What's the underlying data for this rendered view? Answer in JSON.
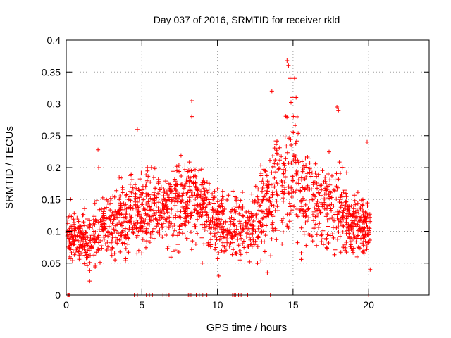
{
  "chart_data": {
    "type": "scatter",
    "title": "Day 037 of 2016, SRMTID for receiver rkld",
    "xlabel": "GPS time / hours",
    "ylabel": "SRMTID / TECUs",
    "xlim": [
      0,
      24
    ],
    "ylim": [
      0,
      0.4
    ],
    "xticks": [
      0,
      5,
      10,
      15,
      20
    ],
    "xtick_labels": [
      "0",
      "5",
      "10",
      "15",
      "20"
    ],
    "yticks": [
      0,
      0.05,
      0.1,
      0.15,
      0.2,
      0.25,
      0.3,
      0.35,
      0.4
    ],
    "ytick_labels": [
      "0",
      "0.05",
      "0.1",
      "0.15",
      "0.2",
      "0.25",
      "0.3",
      "0.35",
      "0.4"
    ],
    "grid": true,
    "marker": "+",
    "color": "#ff0000",
    "series": [
      {
        "name": "SRMTID",
        "x_range": [
          0.05,
          20.1
        ],
        "envelope": [
          {
            "x": 0.0,
            "lo": 0.055,
            "hi": 0.14
          },
          {
            "x": 1.0,
            "lo": 0.05,
            "hi": 0.13
          },
          {
            "x": 1.5,
            "lo": 0.025,
            "hi": 0.13
          },
          {
            "x": 2.0,
            "lo": 0.045,
            "hi": 0.16
          },
          {
            "x": 3.0,
            "lo": 0.05,
            "hi": 0.17
          },
          {
            "x": 4.0,
            "lo": 0.055,
            "hi": 0.19
          },
          {
            "x": 5.0,
            "lo": 0.06,
            "hi": 0.2
          },
          {
            "x": 6.0,
            "lo": 0.08,
            "hi": 0.2
          },
          {
            "x": 7.0,
            "lo": 0.07,
            "hi": 0.21
          },
          {
            "x": 8.0,
            "lo": 0.08,
            "hi": 0.23
          },
          {
            "x": 9.0,
            "lo": 0.08,
            "hi": 0.2
          },
          {
            "x": 10.0,
            "lo": 0.05,
            "hi": 0.17
          },
          {
            "x": 11.0,
            "lo": 0.05,
            "hi": 0.16
          },
          {
            "x": 12.0,
            "lo": 0.05,
            "hi": 0.16
          },
          {
            "x": 13.0,
            "lo": 0.05,
            "hi": 0.22
          },
          {
            "x": 14.0,
            "lo": 0.07,
            "hi": 0.26
          },
          {
            "x": 15.0,
            "lo": 0.07,
            "hi": 0.3
          },
          {
            "x": 16.0,
            "lo": 0.06,
            "hi": 0.24
          },
          {
            "x": 17.0,
            "lo": 0.06,
            "hi": 0.22
          },
          {
            "x": 18.0,
            "lo": 0.05,
            "hi": 0.23
          },
          {
            "x": 19.0,
            "lo": 0.05,
            "hi": 0.17
          },
          {
            "x": 20.1,
            "lo": 0.06,
            "hi": 0.15
          }
        ],
        "notable_points": [
          [
            0.3,
            0.15
          ],
          [
            1.55,
            0.022
          ],
          [
            2.1,
            0.228
          ],
          [
            2.15,
            0.2
          ],
          [
            4.7,
            0.26
          ],
          [
            8.3,
            0.305
          ],
          [
            8.3,
            0.28
          ],
          [
            14.6,
            0.368
          ],
          [
            14.7,
            0.36
          ],
          [
            14.8,
            0.34
          ],
          [
            15.1,
            0.34
          ],
          [
            15.2,
            0.31
          ],
          [
            13.6,
            0.32
          ],
          [
            17.9,
            0.295
          ],
          [
            18.0,
            0.29
          ],
          [
            10.1,
            0.03
          ],
          [
            13.3,
            0.035
          ],
          [
            9.0,
            0.05
          ],
          [
            20.1,
            0.04
          ],
          [
            19.9,
            0.24
          ]
        ],
        "zero_value_hours": [
          0.1,
          0.15,
          0.2,
          4.5,
          4.7,
          5.3,
          5.5,
          5.7,
          6.4,
          6.6,
          6.8,
          8.0,
          8.1,
          8.2,
          8.3,
          8.6,
          8.8,
          9.0,
          9.1,
          9.3,
          11.0,
          11.1,
          11.2,
          11.3,
          11.4,
          11.5,
          11.6,
          12.0,
          13.5,
          20.0
        ],
        "point_count": 1800
      }
    ]
  }
}
